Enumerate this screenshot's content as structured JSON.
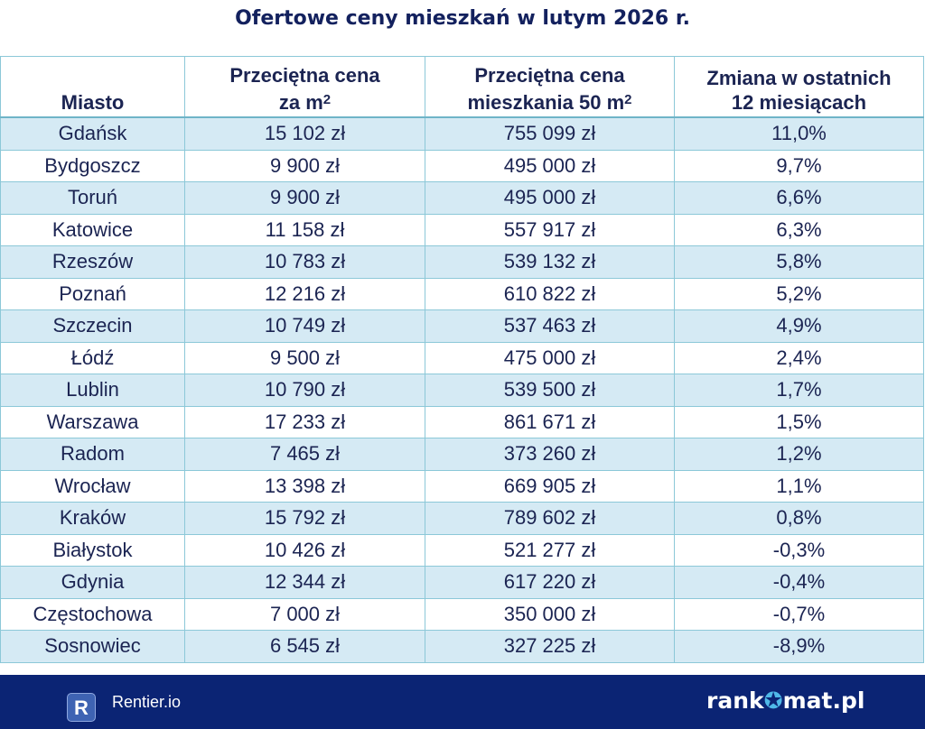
{
  "title": "Ofertowe ceny mieszkań w lutym 2026 r.",
  "chart_data": {
    "type": "table",
    "title": "Ofertowe ceny mieszkań w lutym 2026 r.",
    "columns": [
      {
        "label": "Miasto",
        "sup": ""
      },
      {
        "label": "Przeciętna cena za m",
        "sup": "2"
      },
      {
        "label": "Przeciętna cena mieszkania 50 m",
        "sup": "2"
      },
      {
        "label": "Zmiana w ostatnich 12 miesiącach",
        "sup": ""
      }
    ],
    "header_lines": [
      [
        "Miasto"
      ],
      [
        "Przeciętna cena",
        "za m"
      ],
      [
        "Przeciętna cena",
        "mieszkania 50 m"
      ],
      [
        "Zmiana w ostatnich",
        "12 miesiącach"
      ]
    ],
    "rows": [
      [
        "Gdańsk",
        "15 102 zł",
        "755 099 zł",
        "11,0%"
      ],
      [
        "Bydgoszcz",
        "9 900 zł",
        "495 000 zł",
        "9,7%"
      ],
      [
        "Toruń",
        "9 900 zł",
        "495 000 zł",
        "6,6%"
      ],
      [
        "Katowice",
        "11 158 zł",
        "557 917 zł",
        "6,3%"
      ],
      [
        "Rzeszów",
        "10 783 zł",
        "539 132 zł",
        "5,8%"
      ],
      [
        "Poznań",
        "12 216 zł",
        "610 822 zł",
        "5,2%"
      ],
      [
        "Szczecin",
        "10 749 zł",
        "537 463 zł",
        "4,9%"
      ],
      [
        "Łódź",
        "9 500 zł",
        "475 000 zł",
        "2,4%"
      ],
      [
        "Lublin",
        "10 790 zł",
        "539 500 zł",
        "1,7%"
      ],
      [
        "Warszawa",
        "17 233 zł",
        "861 671 zł",
        "1,5%"
      ],
      [
        "Radom",
        "7 465 zł",
        "373 260 zł",
        "1,2%"
      ],
      [
        "Wrocław",
        "13 398 zł",
        "669 905 zł",
        "1,1%"
      ],
      [
        "Kraków",
        "15 792 zł",
        "789 602 zł",
        "0,8%"
      ],
      [
        "Białystok",
        "10 426 zł",
        "521 277 zł",
        "-0,3%"
      ],
      [
        "Gdynia",
        "12 344 zł",
        "617 220 zł",
        "-0,4%"
      ],
      [
        "Częstochowa",
        "7 000 zł",
        "350 000 zł",
        "-0,7%"
      ],
      [
        "Sosnowiec",
        "6 545 zł",
        "327 225 zł",
        "-8,9%"
      ]
    ]
  },
  "footer": {
    "left_logo_letter": "R",
    "left_brand": "Rentier.io",
    "right_brand_a": "rank",
    "right_brand_b": "mat.pl",
    "right_brand_full": "rankomat.pl"
  },
  "colors": {
    "navy": "#0b2474",
    "stripe": "#d5eaf4",
    "border": "#8cc8d8",
    "text": "#1b2452"
  }
}
